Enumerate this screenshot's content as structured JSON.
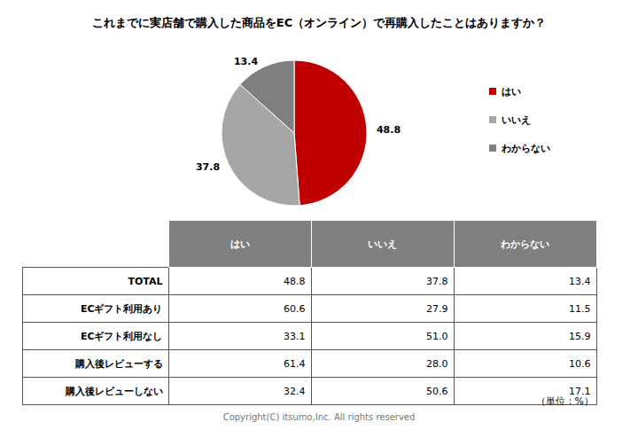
{
  "chart_data": {
    "type": "pie",
    "title": "これまでに実店舗で購入した商品をEC（オンライン）で再購入したことはありますか？",
    "categories": [
      "はい",
      "いいえ",
      "わからない"
    ],
    "values": [
      48.8,
      37.8,
      13.4
    ],
    "colors": [
      "#c00000",
      "#a6a6a6",
      "#7f7f7f"
    ],
    "data_labels": true,
    "legend": "right"
  },
  "table": {
    "header": [
      "はい",
      "いいえ",
      "わからない"
    ],
    "rows": [
      [
        "TOTAL",
        "48.8",
        "37.8",
        "13.4"
      ],
      [
        "ECギフト利用あり",
        "60.6",
        "27.9",
        "11.5"
      ],
      [
        "ECギフト利用なし",
        "33.1",
        "51.0",
        "15.9"
      ],
      [
        "購入後レビューする",
        "61.4",
        "28.0",
        "10.6"
      ],
      [
        "購入後レビューしない",
        "32.4",
        "50.6",
        "17.1"
      ]
    ]
  },
  "unit_note": "（単位：%）",
  "copyright": "Copyright(C) itsumo,Inc. All rights reserved"
}
